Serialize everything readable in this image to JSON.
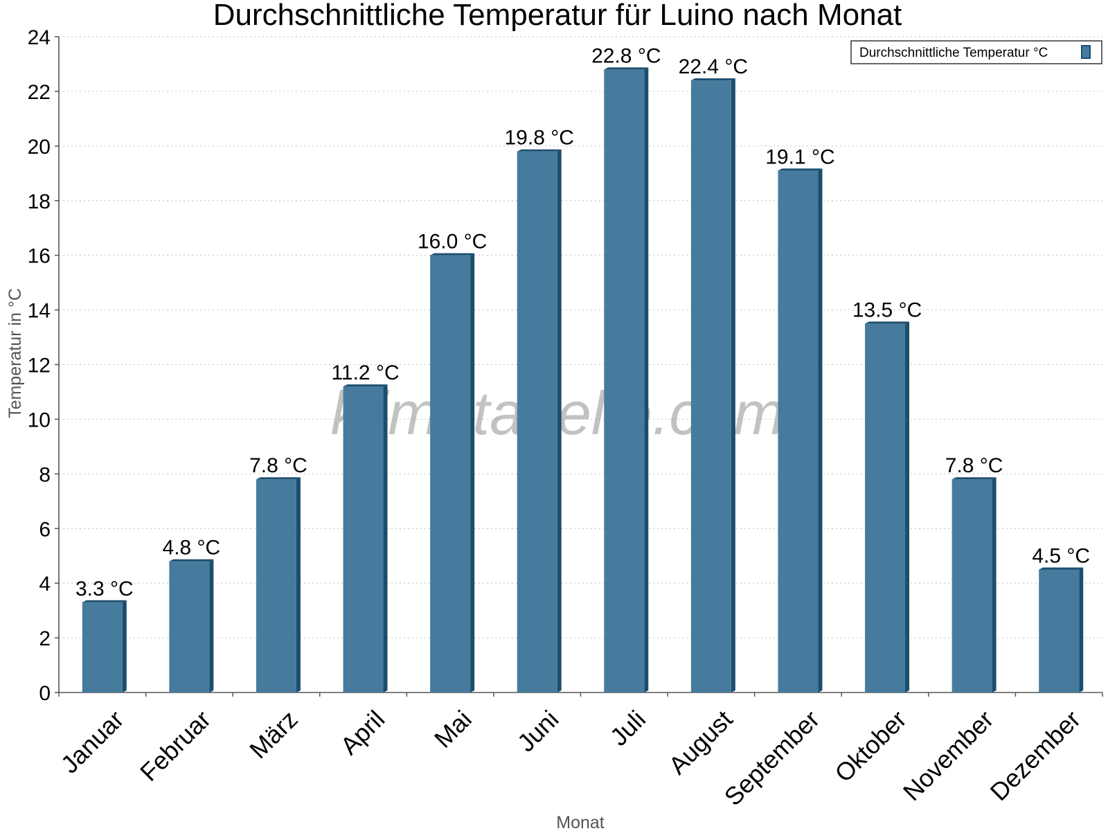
{
  "watermark": "klimatabelle.com",
  "colors": {
    "bar": "#467b9d",
    "bar_side": "#1b4d6e",
    "bar_top": "#1b4d6e",
    "grid": "#c8c8c8",
    "axis": "#555555"
  },
  "chart_data": {
    "type": "bar",
    "title": "Durchschnittliche Temperatur für Luino nach Monat",
    "xlabel": "Monat",
    "ylabel": "Temperatur in °C",
    "categories": [
      "Januar",
      "Februar",
      "März",
      "April",
      "Mai",
      "Juni",
      "Juli",
      "August",
      "September",
      "Oktober",
      "November",
      "Dezember"
    ],
    "series": [
      {
        "name": "Durchschnittliche Temperatur °C",
        "values": [
          3.3,
          4.8,
          7.8,
          11.2,
          16.0,
          19.8,
          22.8,
          22.4,
          19.1,
          13.5,
          7.8,
          4.5
        ],
        "labels": [
          "3.3 °C",
          "4.8 °C",
          "7.8 °C",
          "11.2 °C",
          "16.0 °C",
          "19.8 °C",
          "22.8 °C",
          "22.4 °C",
          "19.1 °C",
          "13.5 °C",
          "7.8 °C",
          "4.5 °C"
        ]
      }
    ],
    "ylim": [
      0,
      24
    ],
    "yticks": [
      0,
      2,
      4,
      6,
      8,
      10,
      12,
      14,
      16,
      18,
      20,
      22,
      24
    ],
    "grid": true,
    "legend_position": "top-right"
  }
}
